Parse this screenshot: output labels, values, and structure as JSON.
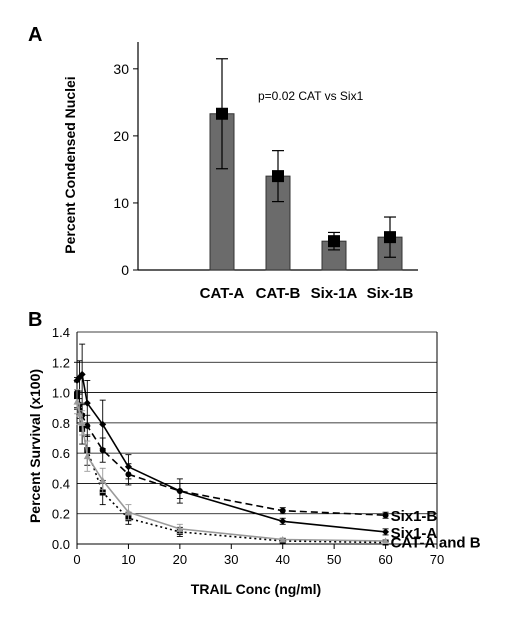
{
  "chart_data": [
    {
      "panel": "A",
      "type": "bar",
      "ylabel": "Percent Condensed Nuclei",
      "ylim": [
        0,
        34
      ],
      "yticks": [
        0,
        10,
        20,
        30
      ],
      "categories": [
        "CAT-A",
        "CAT-B",
        "Six-1A",
        "Six-1B"
      ],
      "values": [
        23.3,
        14.0,
        4.3,
        4.9
      ],
      "errors": [
        8.2,
        3.8,
        1.3,
        3.0
      ],
      "annotation": "p=0.02 CAT vs Six1",
      "bar_color": "#6b6b6b"
    },
    {
      "panel": "B",
      "type": "line",
      "xlabel": "TRAIL Conc (ng/ml)",
      "ylabel": "Percent Survival (x100)",
      "xlim": [
        0,
        70
      ],
      "ylim": [
        0,
        1.4
      ],
      "xticks": [
        0,
        10,
        20,
        30,
        40,
        50,
        60,
        70
      ],
      "yticks": [
        "0.0",
        "0.2",
        "0.4",
        "0.6",
        "0.8",
        "1.0",
        "1.2",
        "1.4"
      ],
      "grid": "horizontal",
      "series": [
        {
          "name": "Six1-B",
          "style": "dashed",
          "color": "#000000",
          "marker": "circle",
          "x": [
            0,
            0.5,
            1,
            2,
            5,
            10,
            20,
            40,
            60
          ],
          "y": [
            1.0,
            0.92,
            0.85,
            0.78,
            0.62,
            0.46,
            0.35,
            0.22,
            0.19
          ],
          "err": [
            0.1,
            0.09,
            0.08,
            0.07,
            0.08,
            0.07,
            0.05,
            0.02,
            0.02
          ]
        },
        {
          "name": "Six1-A",
          "style": "solid",
          "color": "#000000",
          "marker": "diamond",
          "x": [
            0,
            0.5,
            1,
            2,
            5,
            10,
            20,
            40,
            60
          ],
          "y": [
            1.08,
            1.1,
            1.12,
            0.93,
            0.79,
            0.51,
            0.35,
            0.15,
            0.08
          ],
          "err": [
            0.12,
            0.11,
            0.2,
            0.15,
            0.16,
            0.08,
            0.08,
            0.02,
            0.02
          ]
        },
        {
          "name": "CAT-A",
          "style": "dotted",
          "color": "#000000",
          "marker": "square",
          "x": [
            0,
            0.5,
            1,
            2,
            5,
            10,
            20,
            40,
            60
          ],
          "y": [
            0.98,
            0.88,
            0.76,
            0.62,
            0.34,
            0.17,
            0.08,
            0.02,
            0.01
          ],
          "err": [
            0.09,
            0.08,
            0.1,
            0.1,
            0.08,
            0.04,
            0.03,
            0.01,
            0.01
          ]
        },
        {
          "name": "CAT-B",
          "style": "solid",
          "color": "#9a9a9a",
          "marker": "triangle",
          "x": [
            0,
            0.5,
            1,
            2,
            5,
            10,
            20,
            40,
            60
          ],
          "y": [
            0.94,
            0.86,
            0.8,
            0.58,
            0.42,
            0.21,
            0.1,
            0.03,
            0.02
          ],
          "err": [
            0.08,
            0.07,
            0.08,
            0.1,
            0.08,
            0.05,
            0.03,
            0.01,
            0.01
          ]
        }
      ],
      "end_labels": [
        "Six1-B",
        "Six1-A",
        "CAT-A and B"
      ]
    }
  ]
}
